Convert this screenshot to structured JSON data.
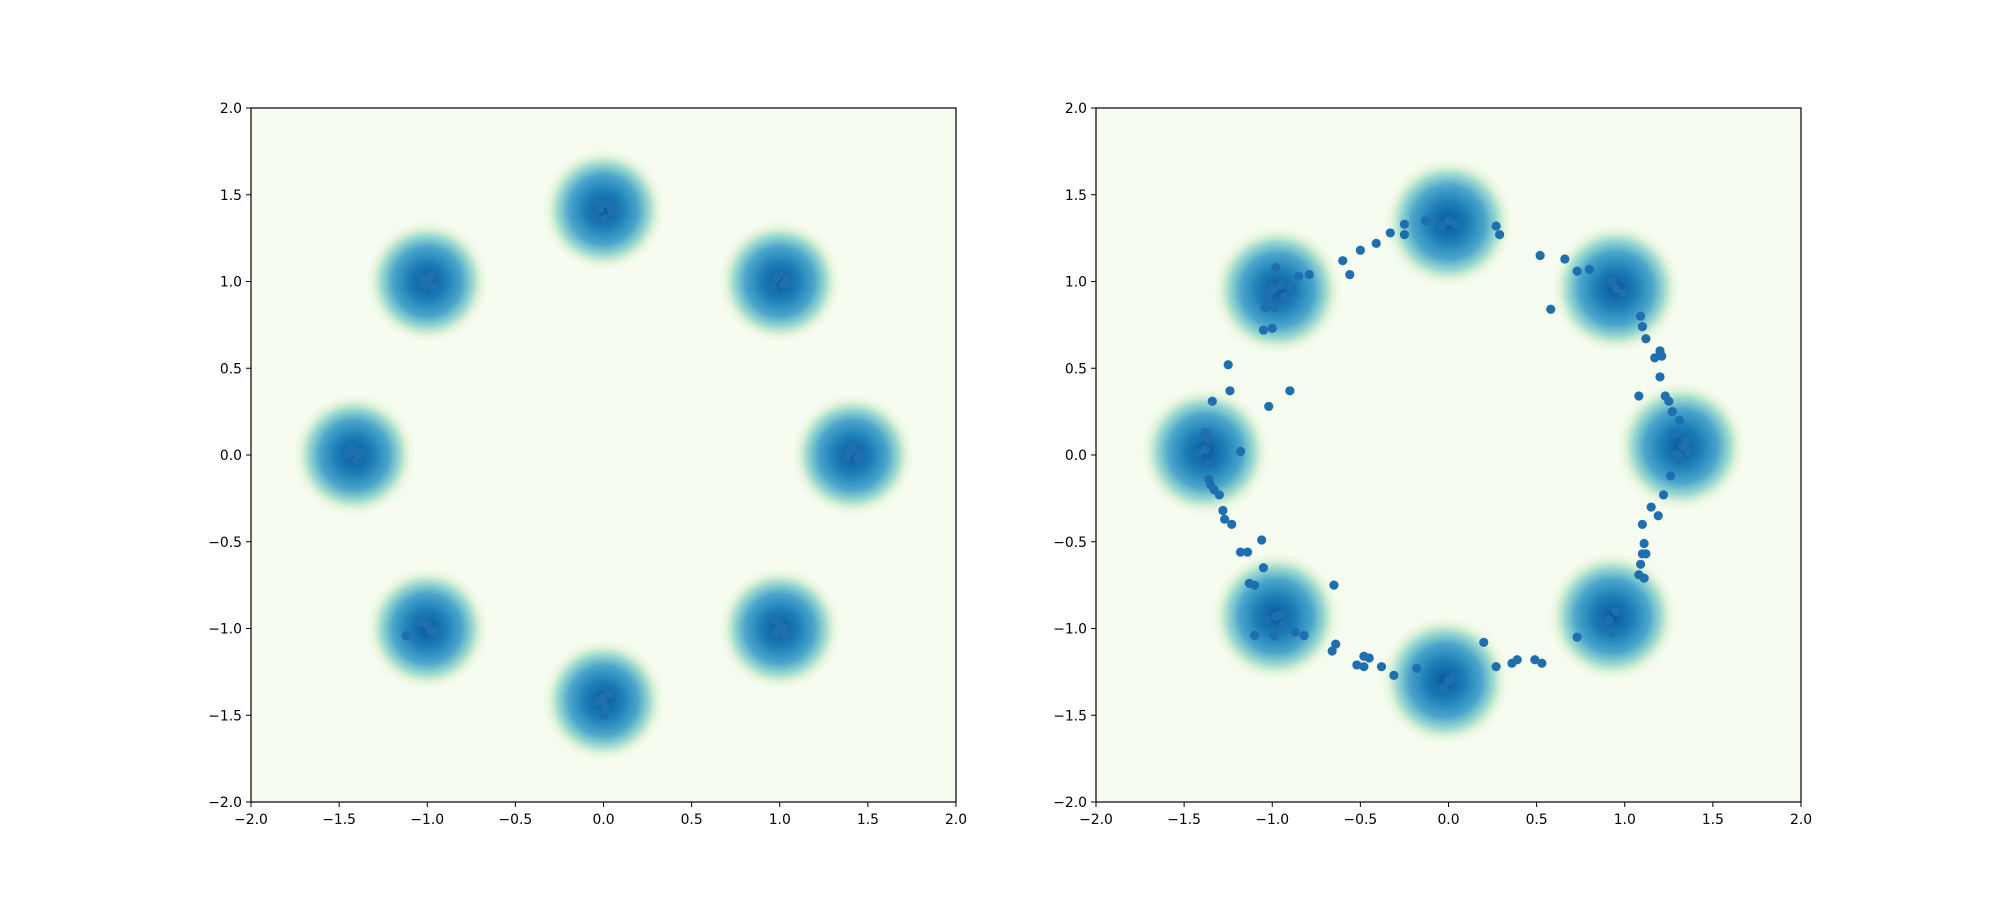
{
  "chart_data": [
    {
      "type": "scatter",
      "title": "",
      "xlabel": "",
      "ylabel": "",
      "xlim": [
        -2,
        2
      ],
      "ylim": [
        -2,
        2
      ],
      "grid": false,
      "colors": {
        "point": "#1f6fae",
        "density_low": "#f7fcf0",
        "density_mid": "#7bccc4",
        "density_high": "#08589e"
      },
      "xticks": [
        "−2.0",
        "−1.5",
        "−1.0",
        "−0.5",
        "0.0",
        "0.5",
        "1.0",
        "1.5",
        "2.0"
      ],
      "yticks": [
        "−2.0",
        "−1.5",
        "−1.0",
        "−0.5",
        "0.0",
        "0.5",
        "1.0",
        "1.5",
        "2.0"
      ],
      "density_centers": [
        [
          0.0,
          1.414
        ],
        [
          1.0,
          1.0
        ],
        [
          1.414,
          0.0
        ],
        [
          1.0,
          -1.0
        ],
        [
          0.0,
          -1.414
        ],
        [
          -1.0,
          -1.0
        ],
        [
          -1.414,
          0.0
        ],
        [
          -1.0,
          1.0
        ]
      ],
      "points": [
        [
          -0.02,
          1.42
        ],
        [
          0.02,
          1.45
        ],
        [
          0.05,
          1.4
        ],
        [
          -0.05,
          1.38
        ],
        [
          0.01,
          1.36
        ],
        [
          0.04,
          1.43
        ],
        [
          -0.03,
          1.46
        ],
        [
          0.98,
          1.02
        ],
        [
          1.02,
          0.98
        ],
        [
          1.0,
          1.05
        ],
        [
          0.96,
          0.97
        ],
        [
          1.04,
          1.01
        ],
        [
          1.4,
          0.02
        ],
        [
          1.44,
          -0.02
        ],
        [
          1.38,
          -0.01
        ],
        [
          1.42,
          0.04
        ],
        [
          1.46,
          0.0
        ],
        [
          1.0,
          -0.98
        ],
        [
          0.98,
          -1.02
        ],
        [
          1.03,
          -1.04
        ],
        [
          0.97,
          -0.95
        ],
        [
          1.02,
          -1.0
        ],
        [
          0.0,
          -1.4
        ],
        [
          0.03,
          -1.38
        ],
        [
          -0.03,
          -1.42
        ],
        [
          0.01,
          -1.45
        ],
        [
          0.0,
          -1.5
        ],
        [
          -1.0,
          -0.98
        ],
        [
          -0.98,
          -1.01
        ],
        [
          -1.03,
          -0.96
        ],
        [
          -0.96,
          -1.02
        ],
        [
          -1.12,
          -1.04
        ],
        [
          -1.42,
          0.02
        ],
        [
          -1.4,
          -0.03
        ],
        [
          -1.45,
          0.0
        ],
        [
          -1.38,
          0.01
        ],
        [
          -1.43,
          0.04
        ],
        [
          -1.0,
          1.0
        ],
        [
          -1.02,
          0.98
        ],
        [
          -0.98,
          1.03
        ],
        [
          -1.03,
          1.02
        ],
        [
          -0.97,
          0.97
        ]
      ]
    },
    {
      "type": "scatter",
      "title": "",
      "xlabel": "",
      "ylabel": "",
      "xlim": [
        -2,
        2
      ],
      "ylim": [
        -2,
        2
      ],
      "grid": false,
      "colors": {
        "point": "#1f6fae",
        "density_low": "#f7fcf0",
        "density_mid": "#7bccc4",
        "density_high": "#08589e"
      },
      "xticks": [
        "−2.0",
        "−1.5",
        "−1.0",
        "−0.5",
        "0.0",
        "0.5",
        "1.0",
        "1.5",
        "2.0"
      ],
      "yticks": [
        "−2.0",
        "−1.5",
        "−1.0",
        "−0.5",
        "0.0",
        "0.5",
        "1.0",
        "1.5",
        "2.0"
      ],
      "density_centers": [
        [
          0.0,
          1.34
        ],
        [
          0.95,
          0.96
        ],
        [
          1.32,
          0.05
        ],
        [
          0.93,
          -0.93
        ],
        [
          -0.02,
          -1.3
        ],
        [
          -0.98,
          -0.93
        ],
        [
          -1.38,
          0.02
        ],
        [
          -0.97,
          0.95
        ]
      ],
      "points": [
        [
          0.0,
          1.35
        ],
        [
          0.04,
          1.33
        ],
        [
          -0.04,
          1.32
        ],
        [
          -0.13,
          1.35
        ],
        [
          0.27,
          1.32
        ],
        [
          0.29,
          1.27
        ],
        [
          -0.25,
          1.33
        ],
        [
          -0.25,
          1.27
        ],
        [
          -0.33,
          1.28
        ],
        [
          -0.41,
          1.22
        ],
        [
          -0.5,
          1.18
        ],
        [
          -0.6,
          1.12
        ],
        [
          -0.56,
          1.04
        ],
        [
          -0.99,
          0.96
        ],
        [
          -0.95,
          0.98
        ],
        [
          -1.02,
          0.93
        ],
        [
          -0.98,
          1.08
        ],
        [
          -0.93,
          0.91
        ],
        [
          -1.03,
          0.89
        ],
        [
          -0.99,
          0.85
        ],
        [
          -1.04,
          0.85
        ],
        [
          -0.89,
          0.96
        ],
        [
          -0.85,
          1.03
        ],
        [
          -0.79,
          1.04
        ],
        [
          -1.05,
          0.72
        ],
        [
          -1.0,
          0.73
        ],
        [
          -1.25,
          0.52
        ],
        [
          -1.24,
          0.37
        ],
        [
          -1.34,
          0.31
        ],
        [
          -0.9,
          0.37
        ],
        [
          -1.02,
          0.28
        ],
        [
          -1.36,
          0.1
        ],
        [
          -1.38,
          0.03
        ],
        [
          -1.42,
          0.01
        ],
        [
          -1.35,
          -0.05
        ],
        [
          -1.18,
          0.02
        ],
        [
          -1.38,
          0.13
        ],
        [
          -1.36,
          -0.14
        ],
        [
          -1.33,
          -0.2
        ],
        [
          -1.3,
          -0.23
        ],
        [
          -1.35,
          -0.17
        ],
        [
          -1.28,
          -0.32
        ],
        [
          -1.27,
          -0.37
        ],
        [
          -1.23,
          -0.4
        ],
        [
          -1.18,
          -0.56
        ],
        [
          -1.14,
          -0.56
        ],
        [
          -1.06,
          -0.49
        ],
        [
          -1.05,
          -0.65
        ],
        [
          -1.13,
          -0.74
        ],
        [
          -1.1,
          -0.75
        ],
        [
          -0.98,
          -0.93
        ],
        [
          -0.94,
          -0.98
        ],
        [
          -1.03,
          -0.95
        ],
        [
          -0.95,
          -0.92
        ],
        [
          -1.1,
          -1.04
        ],
        [
          -0.82,
          -1.04
        ],
        [
          -0.87,
          -1.02
        ],
        [
          -0.99,
          -1.04
        ],
        [
          -0.65,
          -0.75
        ],
        [
          -0.64,
          -1.09
        ],
        [
          -0.66,
          -1.13
        ],
        [
          -0.52,
          -1.21
        ],
        [
          -0.48,
          -1.22
        ],
        [
          -0.48,
          -1.16
        ],
        [
          -0.45,
          -1.17
        ],
        [
          -0.38,
          -1.22
        ],
        [
          -0.31,
          -1.27
        ],
        [
          -0.18,
          -1.23
        ],
        [
          0.0,
          -1.3
        ],
        [
          -0.03,
          -1.34
        ],
        [
          0.03,
          -1.28
        ],
        [
          0.2,
          -1.08
        ],
        [
          0.27,
          -1.22
        ],
        [
          0.36,
          -1.2
        ],
        [
          0.39,
          -1.18
        ],
        [
          0.49,
          -1.18
        ],
        [
          0.53,
          -1.2
        ],
        [
          0.91,
          -0.95
        ],
        [
          0.95,
          -0.9
        ],
        [
          0.87,
          -0.98
        ],
        [
          0.93,
          -1.02
        ],
        [
          0.73,
          -1.05
        ],
        [
          1.08,
          -0.69
        ],
        [
          1.11,
          -0.71
        ],
        [
          1.09,
          -0.63
        ],
        [
          1.1,
          -0.57
        ],
        [
          1.12,
          -0.57
        ],
        [
          1.11,
          -0.51
        ],
        [
          1.1,
          -0.4
        ],
        [
          1.15,
          -0.3
        ],
        [
          1.19,
          -0.35
        ],
        [
          1.22,
          -0.23
        ],
        [
          1.26,
          -0.12
        ],
        [
          1.33,
          0.05
        ],
        [
          1.3,
          0.0
        ],
        [
          1.35,
          0.08
        ],
        [
          1.28,
          0.12
        ],
        [
          1.31,
          -0.03
        ],
        [
          1.36,
          0.02
        ],
        [
          1.23,
          0.34
        ],
        [
          1.25,
          0.31
        ],
        [
          1.27,
          0.25
        ],
        [
          1.31,
          0.2
        ],
        [
          1.08,
          0.34
        ],
        [
          1.2,
          0.45
        ],
        [
          1.21,
          0.57
        ],
        [
          1.17,
          0.56
        ],
        [
          1.2,
          0.6
        ],
        [
          1.09,
          0.8
        ],
        [
          1.1,
          0.74
        ],
        [
          1.12,
          0.67
        ],
        [
          0.95,
          0.96
        ],
        [
          0.99,
          0.93
        ],
        [
          0.93,
          1.0
        ],
        [
          0.8,
          1.07
        ],
        [
          0.73,
          1.06
        ],
        [
          0.66,
          1.13
        ],
        [
          0.52,
          1.15
        ],
        [
          0.58,
          0.84
        ]
      ]
    }
  ]
}
